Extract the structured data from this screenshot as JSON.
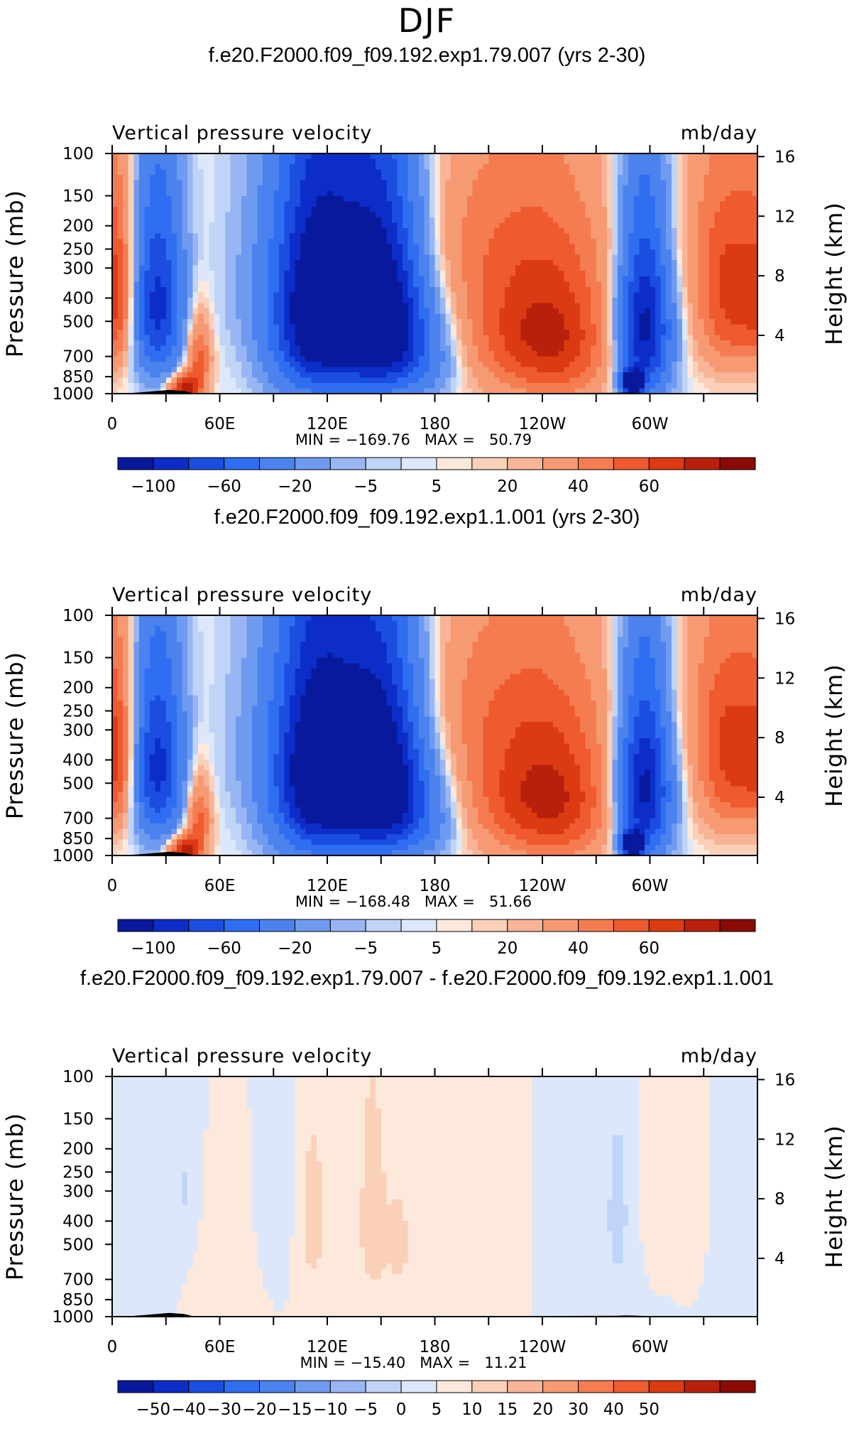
{
  "figure": {
    "title": "DJF"
  },
  "chart_data": [
    {
      "type": "contour",
      "title": "f.e20.F2000.f09_f09.192.exp1.79.007 (yrs 2-30)",
      "left_label": "Vertical pressure velocity",
      "right_label": "mb/day",
      "ylabel": "Pressure (mb)",
      "y2label": "Height (km)",
      "y_ticks": [
        "100",
        "150",
        "200",
        "250",
        "300",
        "400",
        "500",
        "700",
        "850",
        "1000"
      ],
      "y2_ticks": [
        "16",
        "12",
        "8",
        "4"
      ],
      "x_ticks": [
        "0",
        "60E",
        "120E",
        "180",
        "120W",
        "60W"
      ],
      "stats": "MIN = −169.76   MAX =   50.79",
      "min": -169.76,
      "max": 50.79,
      "colorbar_labels": [
        "−100",
        "−60",
        "−20",
        "−5",
        "5",
        "20",
        "40",
        "60"
      ],
      "colorbar_colors": [
        "#08199c",
        "#0c2dc8",
        "#1a4de0",
        "#2f6ef0",
        "#4b82ee",
        "#6e9af0",
        "#98b6f3",
        "#c0d4f7",
        "#dce8fa",
        "#fde9dc",
        "#fbd0b8",
        "#f8b496",
        "#f69a73",
        "#f47c50",
        "#ef5a2f",
        "#dc3a12",
        "#b8200c",
        "#8a0a06"
      ]
    },
    {
      "type": "contour",
      "title": "f.e20.F2000.f09_f09.192.exp1.1.001 (yrs 2-30)",
      "left_label": "Vertical pressure velocity",
      "right_label": "mb/day",
      "ylabel": "Pressure (mb)",
      "y2label": "Height (km)",
      "y_ticks": [
        "100",
        "150",
        "200",
        "250",
        "300",
        "400",
        "500",
        "700",
        "850",
        "1000"
      ],
      "y2_ticks": [
        "16",
        "12",
        "8",
        "4"
      ],
      "x_ticks": [
        "0",
        "60E",
        "120E",
        "180",
        "120W",
        "60W"
      ],
      "stats": "MIN = −168.48   MAX =   51.66",
      "min": -168.48,
      "max": 51.66,
      "colorbar_labels": [
        "−100",
        "−60",
        "−20",
        "−5",
        "5",
        "20",
        "40",
        "60"
      ],
      "colorbar_colors": [
        "#08199c",
        "#0c2dc8",
        "#1a4de0",
        "#2f6ef0",
        "#4b82ee",
        "#6e9af0",
        "#98b6f3",
        "#c0d4f7",
        "#dce8fa",
        "#fde9dc",
        "#fbd0b8",
        "#f8b496",
        "#f69a73",
        "#f47c50",
        "#ef5a2f",
        "#dc3a12",
        "#b8200c",
        "#8a0a06"
      ]
    },
    {
      "type": "contour",
      "title": "f.e20.F2000.f09_f09.192.exp1.79.007 - f.e20.F2000.f09_f09.192.exp1.1.001",
      "left_label": "Vertical pressure velocity",
      "right_label": "mb/day",
      "ylabel": "Pressure (mb)",
      "y2label": "Height (km)",
      "y_ticks": [
        "100",
        "150",
        "200",
        "250",
        "300",
        "400",
        "500",
        "700",
        "850",
        "1000"
      ],
      "y2_ticks": [
        "16",
        "12",
        "8",
        "4"
      ],
      "x_ticks": [
        "0",
        "60E",
        "120E",
        "180",
        "120W",
        "60W"
      ],
      "stats": "MIN = −15.40   MAX =   11.21",
      "min": -15.4,
      "max": 11.21,
      "colorbar_labels": [
        "−50",
        "−40",
        "−30",
        "−20",
        "−15",
        "−10",
        "−5",
        "0",
        "5",
        "10",
        "15",
        "20",
        "30",
        "40",
        "50"
      ],
      "colorbar_colors": [
        "#08199c",
        "#0c2dc8",
        "#1a4de0",
        "#2f6ef0",
        "#4b82ee",
        "#6e9af0",
        "#98b6f3",
        "#c0d4f7",
        "#dce8fa",
        "#fde9dc",
        "#fbd0b8",
        "#f8b496",
        "#f69a73",
        "#f47c50",
        "#ef5a2f",
        "#dc3a12",
        "#b8200c",
        "#8a0a06"
      ]
    }
  ]
}
